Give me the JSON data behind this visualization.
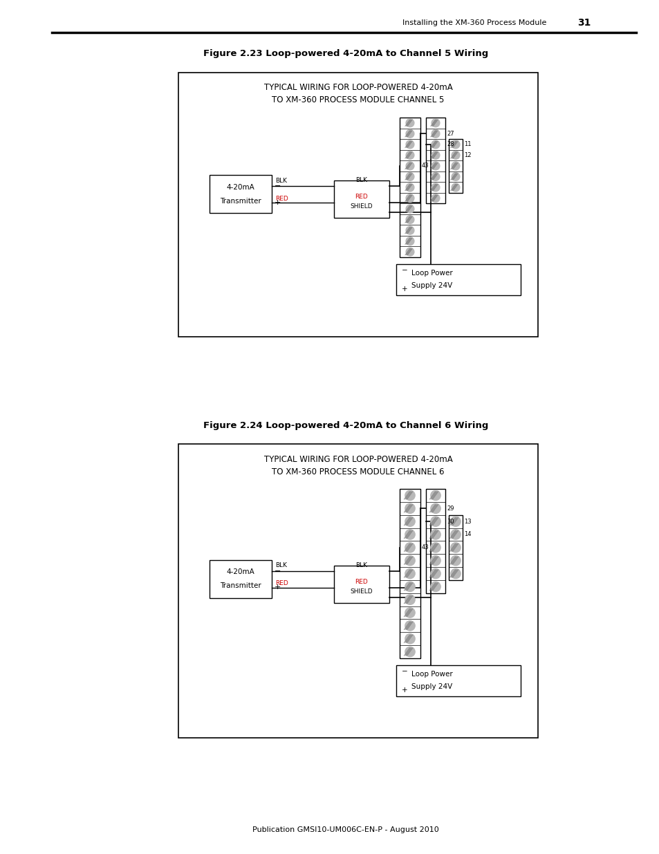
{
  "page_header_text": "Installing the XM-360 Process Module",
  "page_number": "31",
  "fig1_title": "Figure 2.23 Loop-powered 4-20mA to Channel 5 Wiring",
  "fig1_diag_line1": "TYPICAL WIRING FOR LOOP-POWERED 4-20mA",
  "fig1_diag_line2": "TO XM-360 PROCESS MODULE CHANNEL 5",
  "fig2_title": "Figure 2.24 Loop-powered 4-20mA to Channel 6 Wiring",
  "fig2_diag_line1": "TYPICAL WIRING FOR LOOP-POWERED 4-20mA",
  "fig2_diag_line2": "TO XM-360 PROCESS MODULE CHANNEL 6",
  "footer_text": "Publication GMSI10-UM006C-EN-P - August 2010",
  "bg_color": "#ffffff",
  "black": "#000000",
  "gray_fill": "#b0b0b0",
  "gray_stroke": "#666666",
  "hatch_color": "#999999"
}
